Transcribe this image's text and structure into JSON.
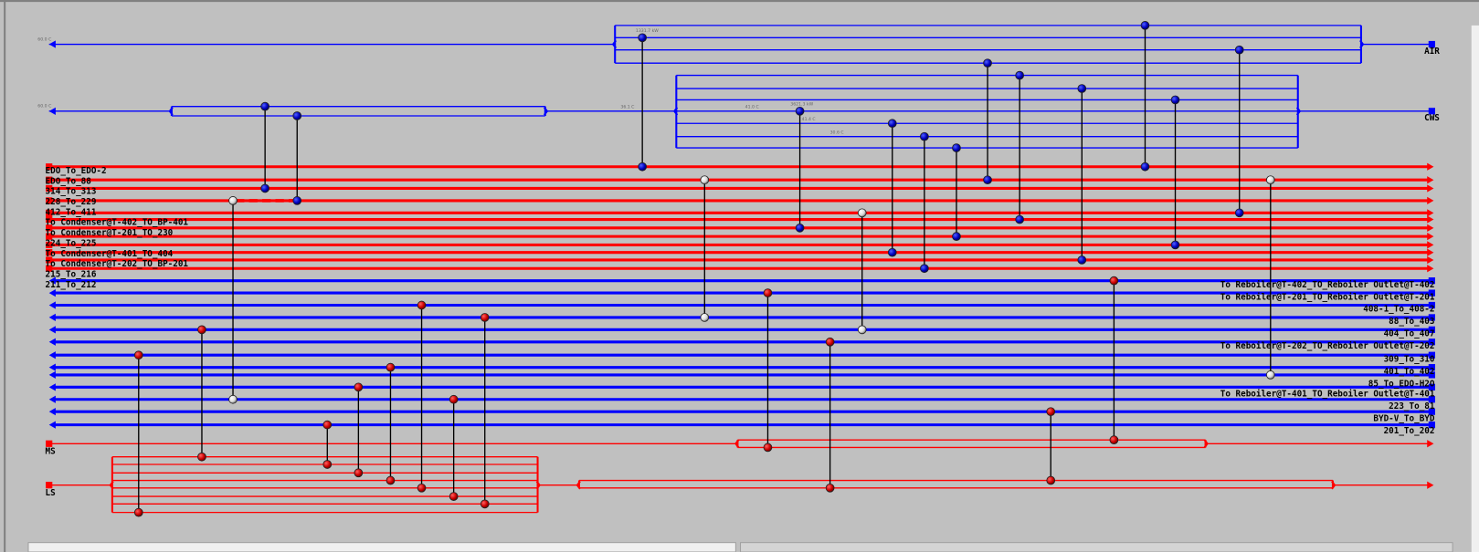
{
  "utilities": {
    "cold": [
      {
        "name": "AIR",
        "color": "#0000ff"
      },
      {
        "name": "CWS",
        "color": "#0000ff"
      }
    ],
    "hot": [
      {
        "name": "MS",
        "color": "#ff0000"
      },
      {
        "name": "LS",
        "color": "#ff0000"
      }
    ]
  },
  "hot_streams": [
    "EDO_To_EDO-2",
    "EDO_To_88",
    "314_To_313",
    "228_To_229",
    "412_To_411",
    "To Condenser@T-402_TO_BP-401",
    "To Condenser@T-201_TO_230",
    "224_To_225",
    "To Condenser@T-401_TO_404",
    "To Condenser@T-202_TO_BP-201",
    "215_To_216",
    "211_To_212"
  ],
  "cold_streams": [
    "To Reboiler@T-402_TO_Reboiler Outlet@T-402",
    "To Reboiler@T-201_TO_Reboiler Outlet@T-201",
    "408-1_To_408-2",
    "88_To_403",
    "404_To_407",
    "To Reboiler@T-202_TO_Reboiler Outlet@T-202",
    "309_To_310",
    "401_To_402",
    "85_To_EDO-H2O",
    "To Reboiler@T-401_TO_Reboiler Outlet@T-401",
    "223_To_81",
    "BYD-V_To_BYD",
    "201_To_202"
  ],
  "annotations": {
    "air_inlet_temp": "60.0 C",
    "cws_inlet_temp": "60.0 C",
    "cws_mid_temp": "36.1 C",
    "cws_branch_temp": "41.0 C",
    "cws_branch_temp_2": "41.4 C",
    "cws_branch_temp_3": "30.6 C",
    "air_node_duty": "1331.7 kW",
    "cws_node_duty": "3621.3 kW"
  },
  "colors": {
    "background": "#c0c0c0",
    "hot": "#ff0000",
    "cold": "#0000ff",
    "match_line": "#000000",
    "exchanger_hot_utility": "#cc0000",
    "exchanger_cold_utility": "#0000cc",
    "exchanger_process": "#f0f0f0"
  }
}
